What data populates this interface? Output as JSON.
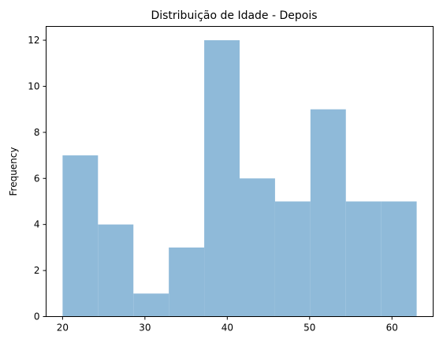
{
  "chart_data": {
    "type": "bar",
    "title": "Distribuição de Idade - Depois",
    "xlabel": "",
    "ylabel": "Frequency",
    "bin_edges": [
      20.0,
      24.3,
      28.6,
      32.9,
      37.2,
      41.5,
      45.8,
      50.1,
      54.4,
      58.7,
      63.0
    ],
    "values": [
      7,
      4,
      1,
      3,
      12,
      6,
      5,
      9,
      5,
      5
    ],
    "xlim": [
      18,
      65
    ],
    "ylim": [
      0,
      12.6
    ],
    "xticks": [
      20,
      30,
      40,
      50,
      60
    ],
    "yticks": [
      0,
      2,
      4,
      6,
      8,
      10,
      12
    ],
    "grid": false,
    "bar_color": "#8fbad9"
  }
}
